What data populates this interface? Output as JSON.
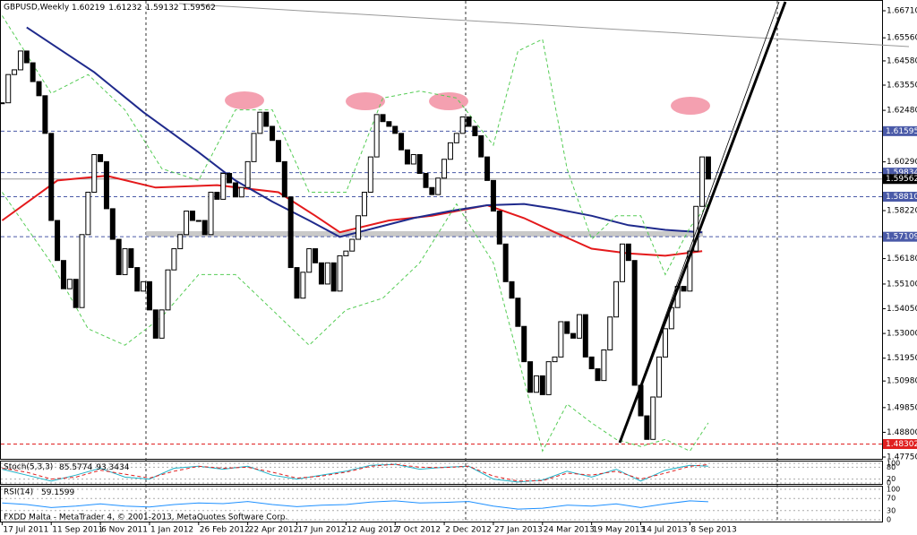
{
  "chart_data": {
    "type": "candlestick",
    "title": "GBPUSD,Weekly",
    "header_values": [
      "1.60219",
      "1.61232",
      "1.59132",
      "1.59562"
    ],
    "values": [
      1.628,
      1.64,
      1.642,
      1.65,
      1.645,
      1.637,
      1.631,
      1.615,
      1.578,
      1.561,
      1.549,
      1.553,
      1.541,
      1.572,
      1.59,
      1.606,
      1.603,
      1.583,
      1.57,
      1.555,
      1.566,
      1.558,
      1.548,
      1.552,
      1.54,
      1.528,
      1.54,
      1.557,
      1.566,
      1.572,
      1.582,
      1.578,
      1.578,
      1.572,
      1.59,
      1.587,
      1.598,
      1.594,
      1.588,
      1.592,
      1.603,
      1.615,
      1.624,
      1.618,
      1.612,
      1.603,
      1.588,
      1.558,
      1.545,
      1.556,
      1.566,
      1.56,
      1.551,
      1.56,
      1.548,
      1.563,
      1.565,
      1.57,
      1.58,
      1.59,
      1.605,
      1.623,
      1.62,
      1.618,
      1.615,
      1.608,
      1.602,
      1.606,
      1.598,
      1.592,
      1.589,
      1.596,
      1.604,
      1.611,
      1.615,
      1.622,
      1.618,
      1.614,
      1.605,
      1.595,
      1.582,
      1.568,
      1.552,
      1.545,
      1.533,
      1.518,
      1.505,
      1.512,
      1.504,
      1.518,
      1.52,
      1.535,
      1.53,
      1.528,
      1.538,
      1.52,
      1.515,
      1.51,
      1.523,
      1.537,
      1.552,
      1.568,
      1.561,
      1.508,
      1.495,
      1.485,
      1.503,
      1.52,
      1.532,
      1.541,
      1.55,
      1.548,
      1.565,
      1.584,
      1.605,
      1.59562
    ],
    "xlim": [
      -0.2,
      143.3
    ],
    "ylim": [
      1.4775,
      1.6671
    ],
    "xticks": [
      {
        "value": 0,
        "label": "17 Jul 2011"
      },
      {
        "value": 8,
        "label": "11 Sep 2011"
      },
      {
        "value": 16,
        "label": "6 Nov 2011"
      },
      {
        "value": 24,
        "label": "1 Jan 2012"
      },
      {
        "value": 32,
        "label": "26 Feb 2012"
      },
      {
        "value": 40,
        "label": "22 Apr 2012"
      },
      {
        "value": 48,
        "label": "17 Jun 2012"
      },
      {
        "value": 56,
        "label": "12 Aug 2012"
      },
      {
        "value": 64,
        "label": "7 Oct 2012"
      },
      {
        "value": 72,
        "label": "2 Dec 2012"
      },
      {
        "value": 80,
        "label": "27 Jan 2013"
      },
      {
        "value": 88,
        "label": "24 Mar 2013"
      },
      {
        "value": 96,
        "label": "19 May 2013"
      },
      {
        "value": 104,
        "label": "14 Jul 2013"
      },
      {
        "value": 112,
        "label": "8 Sep 2013"
      }
    ],
    "yticks": [
      {
        "value": 1.6671,
        "label": "1.66710"
      },
      {
        "value": 1.6556,
        "label": "1.65560"
      },
      {
        "value": 1.6458,
        "label": "1.64580"
      },
      {
        "value": 1.6355,
        "label": "1.63550"
      },
      {
        "value": 1.6248,
        "label": "1.62480"
      },
      {
        "value": 1.6029,
        "label": "1.60290"
      },
      {
        "value": 1.5822,
        "label": "1.58220"
      },
      {
        "value": 1.5618,
        "label": "1.56180"
      },
      {
        "value": 1.551,
        "label": "1.55100"
      },
      {
        "value": 1.5405,
        "label": "1.54050"
      },
      {
        "value": 1.53,
        "label": "1.53000"
      },
      {
        "value": 1.5195,
        "label": "1.51950"
      },
      {
        "value": 1.5098,
        "label": "1.50980"
      },
      {
        "value": 1.4985,
        "label": "1.49850"
      },
      {
        "value": 1.488,
        "label": "1.48800"
      },
      {
        "value": 1.4775,
        "label": "1.47750"
      }
    ],
    "levels": [
      {
        "value": 1.61595,
        "label": "1.61595",
        "color": "#4a5aa8"
      },
      {
        "value": 1.59834,
        "label": "1.59834",
        "color": "#4a5aa8"
      },
      {
        "value": 1.5881,
        "label": "1.58810",
        "color": "#4a5aa8"
      },
      {
        "value": 1.57109,
        "label": "1.57109",
        "color": "#4a5aa8"
      },
      {
        "value": 1.48302,
        "label": "1.48302",
        "color": "#e02020"
      }
    ],
    "current": {
      "value": 1.59562,
      "label": "1.59562"
    },
    "overlays": [
      {
        "color": "#e41a1c",
        "width": 2,
        "dash": false,
        "x": [
          0,
          9,
          17,
          25,
          35,
          45,
          51,
          55,
          63,
          70,
          76,
          79,
          85,
          90,
          96,
          102,
          108,
          114
        ],
        "values": [
          1.578,
          1.595,
          1.597,
          1.592,
          1.593,
          1.59,
          1.58,
          1.573,
          1.578,
          1.58,
          1.583,
          1.5845,
          1.579,
          1.573,
          1.566,
          1.564,
          1.563,
          1.565
        ]
      },
      {
        "color": "#1f2a8c",
        "width": 2,
        "dash": false,
        "x": [
          4,
          15,
          23,
          32,
          38,
          44,
          50,
          55,
          61,
          67,
          73,
          79,
          85,
          90,
          96,
          102,
          108,
          114
        ],
        "values": [
          1.66,
          1.641,
          1.624,
          1.607,
          1.595,
          1.586,
          1.578,
          1.571,
          1.575,
          1.579,
          1.582,
          1.5845,
          1.585,
          1.583,
          1.58,
          1.576,
          1.574,
          1.573
        ]
      },
      {
        "color": "#55cc55",
        "width": 1,
        "dash": true,
        "x": [
          0,
          8,
          14,
          20,
          26,
          32,
          38,
          44,
          50,
          56,
          62,
          68,
          74,
          80,
          84,
          88,
          92,
          96,
          100,
          104,
          108,
          112,
          115
        ],
        "values": [
          1.665,
          1.632,
          1.64,
          1.625,
          1.6,
          1.595,
          1.625,
          1.625,
          1.59,
          1.59,
          1.63,
          1.633,
          1.63,
          1.61,
          1.65,
          1.655,
          1.6,
          1.57,
          1.58,
          1.58,
          1.555,
          1.575,
          1.585
        ]
      },
      {
        "color": "#55cc55",
        "width": 1,
        "dash": true,
        "x": [
          0,
          8,
          14,
          20,
          26,
          32,
          38,
          44,
          50,
          56,
          62,
          68,
          74,
          80,
          84,
          88,
          92,
          96,
          100,
          104,
          108,
          112,
          115
        ],
        "values": [
          1.59,
          1.56,
          1.532,
          1.525,
          1.537,
          1.555,
          1.555,
          1.54,
          1.525,
          1.54,
          1.545,
          1.56,
          1.585,
          1.56,
          1.52,
          1.48,
          1.5,
          1.492,
          1.485,
          1.482,
          1.485,
          1.48,
          1.492
        ]
      }
    ],
    "stoch": {
      "title": "Stoch(5,3,3)",
      "header_values": [
        "85.5774",
        "93.3434"
      ],
      "ylim": [
        0,
        100
      ],
      "yticks": [
        100,
        80,
        20,
        0
      ],
      "series": [
        {
          "color": "#20b2c8",
          "dash": false,
          "x": [
            0,
            4,
            8,
            12,
            16,
            20,
            24,
            28,
            32,
            36,
            40,
            44,
            48,
            52,
            56,
            60,
            64,
            68,
            72,
            76,
            80,
            84,
            88,
            92,
            96,
            100,
            104,
            108,
            112,
            115
          ],
          "values": [
            70,
            40,
            10,
            40,
            75,
            30,
            20,
            75,
            85,
            70,
            85,
            40,
            20,
            40,
            60,
            90,
            95,
            70,
            80,
            85,
            20,
            5,
            15,
            60,
            30,
            70,
            10,
            65,
            90,
            85.5774
          ]
        },
        {
          "color": "#e02020",
          "dash": true,
          "x": [
            0,
            4,
            8,
            12,
            16,
            20,
            24,
            28,
            32,
            36,
            40,
            44,
            48,
            52,
            56,
            60,
            64,
            68,
            72,
            76,
            80,
            84,
            88,
            92,
            96,
            100,
            104,
            108,
            112,
            115
          ],
          "values": [
            75,
            55,
            20,
            30,
            65,
            45,
            25,
            60,
            85,
            75,
            80,
            55,
            25,
            35,
            55,
            85,
            95,
            80,
            78,
            85,
            35,
            10,
            12,
            50,
            40,
            60,
            20,
            50,
            85,
            93.3434
          ]
        }
      ]
    },
    "rsi": {
      "title": "RSI(14)",
      "header_values": [
        "59.1599"
      ],
      "ylim": [
        0,
        100
      ],
      "yticks": [
        100,
        70,
        30,
        0
      ],
      "series": [
        {
          "color": "#1e90ff",
          "dash": false,
          "x": [
            0,
            4,
            8,
            12,
            16,
            20,
            24,
            28,
            32,
            36,
            40,
            44,
            48,
            52,
            56,
            60,
            64,
            68,
            72,
            76,
            80,
            84,
            88,
            92,
            96,
            100,
            104,
            108,
            112,
            115
          ],
          "values": [
            55,
            50,
            40,
            45,
            52,
            45,
            42,
            50,
            55,
            53,
            60,
            50,
            43,
            48,
            50,
            58,
            62,
            55,
            57,
            60,
            45,
            35,
            38,
            48,
            45,
            52,
            40,
            52,
            62,
            59.1599
          ]
        }
      ]
    },
    "footer": "FXDD Malta - MetaTrader 4, © 2001-2013, MetaQuotes Software Corp."
  }
}
